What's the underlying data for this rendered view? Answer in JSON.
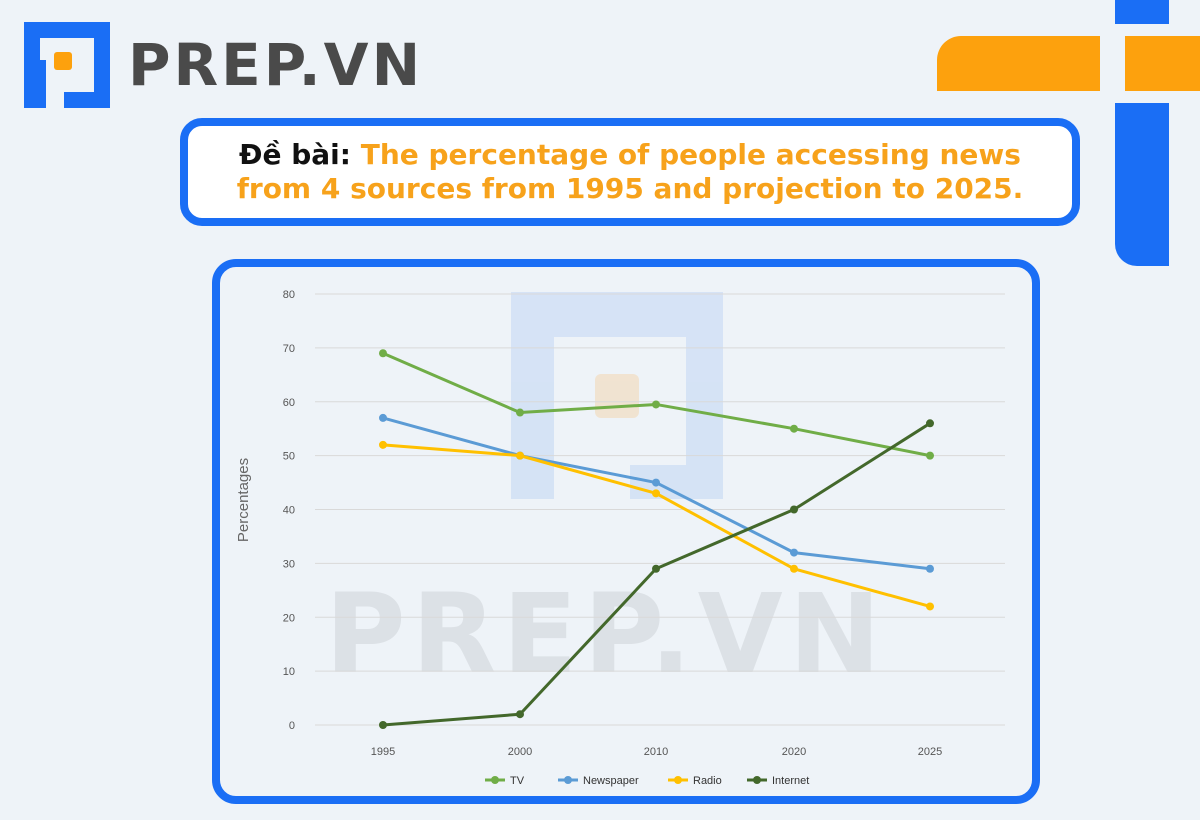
{
  "brand": {
    "name": "PREP.VN",
    "watermark": "PREP.VN",
    "logo_icon": "prep-logo-icon",
    "colors": {
      "blue": "#1a6ef5",
      "orange": "#fda10d",
      "text": "#4a4a4a"
    }
  },
  "prompt": {
    "label": "Đề bài:",
    "text": "The percentage of people accessing news from 4 sources from 1995 and projection to 2025."
  },
  "chart_data": {
    "type": "line",
    "title": "",
    "xlabel": "",
    "ylabel": "Percentages",
    "categories": [
      "1995",
      "2000",
      "2010",
      "2020",
      "2025"
    ],
    "ylim": [
      0,
      80
    ],
    "yticks": [
      0,
      10,
      20,
      30,
      40,
      50,
      60,
      70,
      80
    ],
    "grid": true,
    "legend_position": "bottom",
    "series": [
      {
        "name": "TV",
        "color": "#70ad47",
        "values": [
          69,
          58,
          59.5,
          55,
          50
        ]
      },
      {
        "name": "Newspaper",
        "color": "#5b9bd5",
        "values": [
          57,
          50,
          45,
          32,
          29
        ]
      },
      {
        "name": "Radio",
        "color": "#ffc000",
        "values": [
          52,
          50,
          43,
          29,
          22
        ]
      },
      {
        "name": "Internet",
        "color": "#43682b",
        "values": [
          0,
          2,
          29,
          40,
          56
        ]
      }
    ]
  }
}
